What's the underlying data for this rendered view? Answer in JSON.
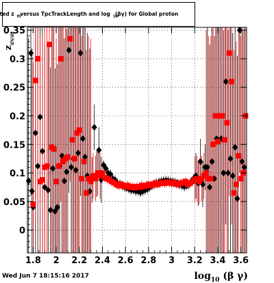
{
  "title": "tted  z_{fit} versus TpcTrackLength and log_{10}(βγ) for Global proton",
  "title_display": "tted  z",
  "title_display_sub": "fit",
  "title_display_rest": " versus TpcTrackLength and log",
  "title_display_sub2": "10",
  "title_display_rest2": "(βγ) for Global proton",
  "timestamp": "Wed Jun  7 18:15:16 2017",
  "chart_data": {
    "type": "scatter",
    "xlabel": "log10 (β γ)",
    "xlabel_main": "log",
    "xlabel_sub": "10",
    "xlabel_rest": "(β γ)",
    "ylabel": "z",
    "ylabel_sub": "dN/dx",
    "xlim": [
      1.75,
      3.65
    ],
    "ylim": [
      -0.04,
      0.355
    ],
    "grid": true,
    "x_ticks": [
      "1.8",
      "2",
      "2.2",
      "2.4",
      "2.6",
      "2.8",
      "3",
      "3.2",
      "3.4",
      "3.6"
    ],
    "x_tick_values": [
      1.8,
      2.0,
      2.2,
      2.4,
      2.6,
      2.8,
      3.0,
      3.2,
      3.4,
      3.6
    ],
    "y_ticks": [
      "0",
      "0.05",
      "0.1",
      "0.15",
      "0.2",
      "0.25",
      "0.3",
      "0.35"
    ],
    "y_tick_values": [
      0,
      0.05,
      0.1,
      0.15,
      0.2,
      0.25,
      0.3,
      0.35
    ],
    "colors": {
      "black_series": "#000000",
      "red_series": "#ff0000"
    },
    "series": [
      {
        "marker": "diamond",
        "color": "#000000",
        "points": [
          [
            1.76,
            0.086
          ],
          [
            1.78,
            0.31
          ],
          [
            1.79,
            0.068
          ],
          [
            1.8,
            0.04
          ],
          [
            1.82,
            0.17
          ],
          [
            1.84,
            0.112
          ],
          [
            1.86,
            0.198
          ],
          [
            1.88,
            0.138
          ],
          [
            1.9,
            0.075
          ],
          [
            1.93,
            0.07
          ],
          [
            1.95,
            0.035
          ],
          [
            1.97,
            0.108
          ],
          [
            1.99,
            0.033
          ],
          [
            2.01,
            0.04
          ],
          [
            2.03,
            0.112
          ],
          [
            2.05,
            0.13
          ],
          [
            2.07,
            0.086
          ],
          [
            2.09,
            0.102
          ],
          [
            2.11,
            0.315
          ],
          [
            2.13,
            0.11
          ],
          [
            2.15,
            0.125
          ],
          [
            2.17,
            0.105
          ],
          [
            2.19,
            0.135
          ],
          [
            2.21,
            0.31
          ],
          [
            2.23,
            0.16
          ],
          [
            2.25,
            0.128
          ],
          [
            2.27,
            0.095
          ],
          [
            2.29,
            0.068
          ],
          [
            2.31,
            0.088
          ],
          [
            2.33,
            0.18
          ],
          [
            2.35,
            0.098
          ],
          [
            2.37,
            0.14
          ],
          [
            2.39,
            0.088
          ],
          [
            2.41,
            0.114
          ],
          [
            2.43,
            0.108
          ],
          [
            2.45,
            0.1
          ],
          [
            2.47,
            0.098
          ],
          [
            2.49,
            0.09
          ],
          [
            2.51,
            0.088
          ],
          [
            2.53,
            0.082
          ],
          [
            2.55,
            0.08
          ],
          [
            2.57,
            0.078
          ],
          [
            2.59,
            0.076
          ],
          [
            2.61,
            0.074
          ],
          [
            2.63,
            0.072
          ],
          [
            2.65,
            0.07
          ],
          [
            2.67,
            0.07
          ],
          [
            2.69,
            0.068
          ],
          [
            2.71,
            0.068
          ],
          [
            2.73,
            0.066
          ],
          [
            2.75,
            0.068
          ],
          [
            2.77,
            0.07
          ],
          [
            2.79,
            0.072
          ],
          [
            2.81,
            0.075
          ],
          [
            2.83,
            0.078
          ],
          [
            2.85,
            0.08
          ],
          [
            2.87,
            0.082
          ],
          [
            2.89,
            0.084
          ],
          [
            2.91,
            0.085
          ],
          [
            2.93,
            0.086
          ],
          [
            2.95,
            0.087
          ],
          [
            2.97,
            0.086
          ],
          [
            2.99,
            0.085
          ],
          [
            3.01,
            0.084
          ],
          [
            3.03,
            0.083
          ],
          [
            3.05,
            0.082
          ],
          [
            3.07,
            0.08
          ],
          [
            3.09,
            0.078
          ],
          [
            3.11,
            0.076
          ],
          [
            3.13,
            0.078
          ],
          [
            3.15,
            0.08
          ],
          [
            3.17,
            0.085
          ],
          [
            3.19,
            0.09
          ],
          [
            3.21,
            0.095
          ],
          [
            3.23,
            0.082
          ],
          [
            3.25,
            0.12
          ],
          [
            3.27,
            0.08
          ],
          [
            3.29,
            0.11
          ],
          [
            3.31,
            0.11
          ],
          [
            3.33,
            0.075
          ],
          [
            3.35,
            0.12
          ],
          [
            3.37,
            0.09
          ],
          [
            3.39,
            0.16
          ],
          [
            3.41,
            0.2
          ],
          [
            3.43,
            0.16
          ],
          [
            3.45,
            0.1
          ],
          [
            3.47,
            0.26
          ],
          [
            3.49,
            0.1
          ],
          [
            3.51,
            0.125
          ],
          [
            3.53,
            0.095
          ],
          [
            3.55,
            0.145
          ],
          [
            3.57,
            0.055
          ],
          [
            3.59,
            0.35
          ],
          [
            3.61,
            0.12
          ],
          [
            3.63,
            0.11
          ]
        ]
      },
      {
        "marker": "square",
        "color": "#ff0000",
        "points": [
          [
            1.8,
            0.045
          ],
          [
            1.82,
            0.262
          ],
          [
            1.84,
            0.3
          ],
          [
            1.86,
            0.085
          ],
          [
            1.88,
            0.088
          ],
          [
            1.9,
            0.11
          ],
          [
            1.92,
            0.112
          ],
          [
            1.94,
            0.325
          ],
          [
            1.96,
            0.145
          ],
          [
            1.98,
            0.142
          ],
          [
            2.0,
            0.085
          ],
          [
            2.02,
            0.112
          ],
          [
            2.04,
            0.3
          ],
          [
            2.06,
            0.12
          ],
          [
            2.08,
            0.125
          ],
          [
            2.1,
            0.128
          ],
          [
            2.12,
            0.335
          ],
          [
            2.14,
            0.158
          ],
          [
            2.16,
            0.125
          ],
          [
            2.18,
            0.17
          ],
          [
            2.2,
            0.175
          ],
          [
            2.22,
            0.09
          ],
          [
            2.24,
            0.12
          ],
          [
            2.26,
            0.065
          ],
          [
            2.28,
            0.09
          ],
          [
            2.3,
            0.085
          ],
          [
            2.32,
            0.095
          ],
          [
            2.34,
            0.09
          ],
          [
            2.36,
            0.1
          ],
          [
            2.38,
            0.095
          ],
          [
            2.4,
            0.1
          ],
          [
            2.42,
            0.092
          ],
          [
            2.44,
            0.09
          ],
          [
            2.46,
            0.088
          ],
          [
            2.48,
            0.085
          ],
          [
            2.5,
            0.083
          ],
          [
            2.52,
            0.08
          ],
          [
            2.54,
            0.078
          ],
          [
            2.56,
            0.08
          ],
          [
            2.58,
            0.078
          ],
          [
            2.6,
            0.076
          ],
          [
            2.62,
            0.078
          ],
          [
            2.64,
            0.075
          ],
          [
            2.66,
            0.076
          ],
          [
            2.68,
            0.074
          ],
          [
            2.7,
            0.076
          ],
          [
            2.72,
            0.075
          ],
          [
            2.74,
            0.078
          ],
          [
            2.76,
            0.076
          ],
          [
            2.78,
            0.078
          ],
          [
            2.8,
            0.08
          ],
          [
            2.82,
            0.078
          ],
          [
            2.84,
            0.08
          ],
          [
            2.86,
            0.082
          ],
          [
            2.88,
            0.08
          ],
          [
            2.9,
            0.082
          ],
          [
            2.92,
            0.083
          ],
          [
            2.94,
            0.082
          ],
          [
            2.96,
            0.084
          ],
          [
            2.98,
            0.083
          ],
          [
            3.0,
            0.082
          ],
          [
            3.02,
            0.083
          ],
          [
            3.04,
            0.081
          ],
          [
            3.06,
            0.08
          ],
          [
            3.08,
            0.082
          ],
          [
            3.1,
            0.083
          ],
          [
            3.12,
            0.085
          ],
          [
            3.14,
            0.08
          ],
          [
            3.16,
            0.082
          ],
          [
            3.18,
            0.085
          ],
          [
            3.2,
            0.088
          ],
          [
            3.22,
            0.09
          ],
          [
            3.24,
            0.085
          ],
          [
            3.26,
            0.09
          ],
          [
            3.28,
            0.095
          ],
          [
            3.3,
            0.1
          ],
          [
            3.32,
            0.09
          ],
          [
            3.34,
            0.09
          ],
          [
            3.36,
            0.15
          ],
          [
            3.38,
            0.2
          ],
          [
            3.4,
            0.155
          ],
          [
            3.42,
            0.2
          ],
          [
            3.44,
            0.2
          ],
          [
            3.46,
            0.158
          ],
          [
            3.48,
            0.188
          ],
          [
            3.5,
            0.31
          ],
          [
            3.52,
            0.26
          ],
          [
            3.54,
            0.065
          ],
          [
            3.56,
            0.08
          ],
          [
            3.58,
            0.13
          ],
          [
            3.6,
            0.09
          ],
          [
            3.62,
            0.1
          ],
          [
            3.64,
            0.2
          ]
        ]
      }
    ]
  }
}
